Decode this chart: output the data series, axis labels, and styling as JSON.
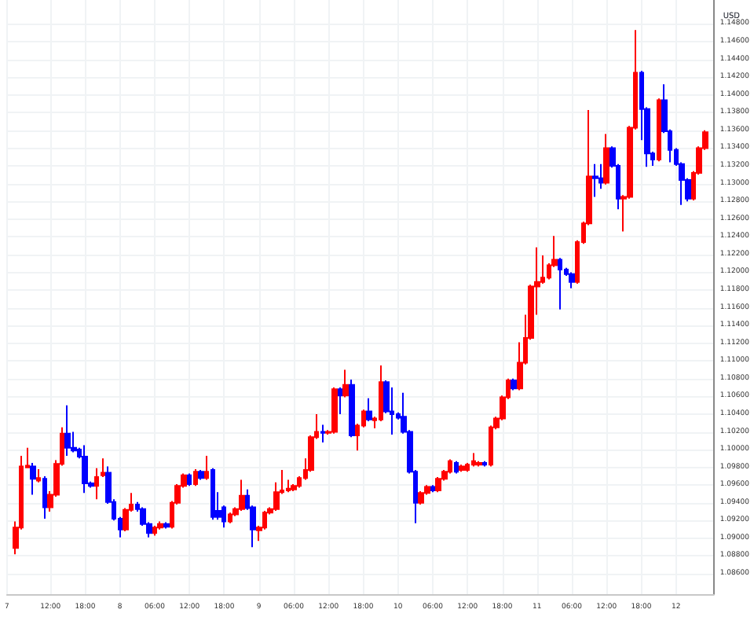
{
  "chart_data": {
    "type": "candlestick",
    "ylabel": "USD",
    "grid": true,
    "x": [
      "--01-07T06:00",
      "--01-07T07:00",
      "--01-07T08:00",
      "--01-07T09:00",
      "--01-07T10:00",
      "--01-07T11:00",
      "--01-07T12:00",
      "--01-07T13:00",
      "--01-07T14:00",
      "--01-07T15:00",
      "--01-07T16:00",
      "--01-07T17:00",
      "--01-07T18:00",
      "--01-07T19:00",
      "--01-07T20:00",
      "--01-07T21:00",
      "--01-07T22:00",
      "--01-07T23:00",
      "--01-08T00:00",
      "--01-08T01:00",
      "--01-08T02:00",
      "--01-08T03:00",
      "--01-08T04:00",
      "--01-08T05:00",
      "--01-08T06:00",
      "--01-08T07:00",
      "--01-08T08:00",
      "--01-08T09:00",
      "--01-08T10:00",
      "--01-08T11:00",
      "--01-08T12:00",
      "--01-08T13:00",
      "--01-08T14:00",
      "--01-08T15:00",
      "--01-08T16:00",
      "--01-08T17:00",
      "--01-08T18:00",
      "--01-08T19:00",
      "--01-08T20:00",
      "--01-08T21:00",
      "--01-08T22:00",
      "--01-08T23:00",
      "--01-09T00:00",
      "--01-09T01:00",
      "--01-09T02:00",
      "--01-09T03:00",
      "--01-09T04:00",
      "--01-09T05:00",
      "--01-09T06:00",
      "--01-09T07:00",
      "--01-09T08:00",
      "--01-09T09:00",
      "--01-09T10:00",
      "--01-09T11:00",
      "--01-09T12:00",
      "--01-09T13:00",
      "--01-09T14:00",
      "--01-09T15:00",
      "--01-09T16:00",
      "--01-09T17:00",
      "--01-09T18:00",
      "--01-09T19:00",
      "--01-09T20:00",
      "--01-09T21:00",
      "--01-09T22:00",
      "--01-09T23:00",
      "--01-10T00:00",
      "--01-10T01:00",
      "--01-10T02:00",
      "--01-10T03:00",
      "--01-10T04:00",
      "--01-10T05:00",
      "--01-10T06:00",
      "--01-10T07:00",
      "--01-10T08:00",
      "--01-10T09:00",
      "--01-10T10:00",
      "--01-10T11:00",
      "--01-10T12:00",
      "--01-10T13:00",
      "--01-10T14:00",
      "--01-10T15:00",
      "--01-10T16:00",
      "--01-10T17:00",
      "--01-10T18:00",
      "--01-10T19:00",
      "--01-10T20:00",
      "--01-10T21:00",
      "--01-10T22:00",
      "--01-10T23:00",
      "--01-11T00:00",
      "--01-11T01:00",
      "--01-11T02:00",
      "--01-11T03:00",
      "--01-11T04:00",
      "--01-11T05:00",
      "--01-11T06:00",
      "--01-11T07:00",
      "--01-11T08:00",
      "--01-11T09:00",
      "--01-11T10:00",
      "--01-11T11:00",
      "--01-11T12:00",
      "--01-11T13:00",
      "--01-11T14:00",
      "--01-11T15:00",
      "--01-11T16:00",
      "--01-11T17:00",
      "--01-11T18:00",
      "--01-11T19:00",
      "--01-11T20:00",
      "--01-11T21:00",
      "--01-11T22:00",
      "--01-11T23:00",
      "--01-12T00:00",
      "--01-12T01:00",
      "--01-12T02:00",
      "--01-12T03:00",
      "--01-12T04:00",
      "--01-12T05:00"
    ],
    "xlim": [
      "--01-07T04:30",
      "--01-12T06:30"
    ],
    "xticks": [
      {
        "value": "--01-07T04:30",
        "label": "7"
      },
      {
        "value": "--01-07T12:00",
        "label": "12:00"
      },
      {
        "value": "--01-07T18:00",
        "label": "18:00"
      },
      {
        "value": "--01-08",
        "label": "8"
      },
      {
        "value": "--01-08T06:00",
        "label": "06:00"
      },
      {
        "value": "--01-08T12:00",
        "label": "12:00"
      },
      {
        "value": "--01-08T18:00",
        "label": "18:00"
      },
      {
        "value": "--01-09",
        "label": "9"
      },
      {
        "value": "--01-09T06:00",
        "label": "06:00"
      },
      {
        "value": "--01-09T12:00",
        "label": "12:00"
      },
      {
        "value": "--01-09T18:00",
        "label": "18:00"
      },
      {
        "value": "--01-10",
        "label": "10"
      },
      {
        "value": "--01-10T06:00",
        "label": "06:00"
      },
      {
        "value": "--01-10T12:00",
        "label": "12:00"
      },
      {
        "value": "--01-10T18:00",
        "label": "18:00"
      },
      {
        "value": "--01-11",
        "label": "11"
      },
      {
        "value": "--01-11T06:00",
        "label": "06:00"
      },
      {
        "value": "--01-11T12:00",
        "label": "12:00"
      },
      {
        "value": "--01-11T18:00",
        "label": "18:00"
      },
      {
        "value": "--01-12",
        "label": "12"
      }
    ],
    "ylim": [
      1.0837,
      1.1507
    ],
    "yticks": [
      {
        "value": 1.086,
        "label": "1.08600"
      },
      {
        "value": 1.088,
        "label": "1.08800"
      },
      {
        "value": 1.09,
        "label": "1.09000"
      },
      {
        "value": 1.092,
        "label": "1.09200"
      },
      {
        "value": 1.094,
        "label": "1.09400"
      },
      {
        "value": 1.096,
        "label": "1.09600"
      },
      {
        "value": 1.098,
        "label": "1.09800"
      },
      {
        "value": 1.1,
        "label": "1.10000"
      },
      {
        "value": 1.102,
        "label": "1.10200"
      },
      {
        "value": 1.104,
        "label": "1.10400"
      },
      {
        "value": 1.106,
        "label": "1.10600"
      },
      {
        "value": 1.108,
        "label": "1.10800"
      },
      {
        "value": 1.11,
        "label": "1.11000"
      },
      {
        "value": 1.112,
        "label": "1.11200"
      },
      {
        "value": 1.114,
        "label": "1.11400"
      },
      {
        "value": 1.116,
        "label": "1.11600"
      },
      {
        "value": 1.118,
        "label": "1.11800"
      },
      {
        "value": 1.12,
        "label": "1.12000"
      },
      {
        "value": 1.122,
        "label": "1.12200"
      },
      {
        "value": 1.124,
        "label": "1.12400"
      },
      {
        "value": 1.126,
        "label": "1.12600"
      },
      {
        "value": 1.128,
        "label": "1.12800"
      },
      {
        "value": 1.13,
        "label": "1.13000"
      },
      {
        "value": 1.132,
        "label": "1.13200"
      },
      {
        "value": 1.134,
        "label": "1.13400"
      },
      {
        "value": 1.136,
        "label": "1.13600"
      },
      {
        "value": 1.138,
        "label": "1.13800"
      },
      {
        "value": 1.14,
        "label": "1.14000"
      },
      {
        "value": 1.142,
        "label": "1.14200"
      },
      {
        "value": 1.144,
        "label": "1.14400"
      },
      {
        "value": 1.146,
        "label": "1.14600"
      },
      {
        "value": 1.148,
        "label": "1.14800"
      }
    ],
    "ohlc": [
      [
        1.0889,
        1.0919,
        1.0882,
        1.0912
      ],
      [
        1.0912,
        1.0993,
        1.091,
        1.0981
      ],
      [
        1.098,
        1.1002,
        1.0979,
        1.0982
      ],
      [
        1.0981,
        1.0985,
        1.0949,
        1.0967
      ],
      [
        1.0965,
        1.0978,
        1.0963,
        1.0968
      ],
      [
        1.0967,
        1.097,
        1.0922,
        1.0935
      ],
      [
        1.0935,
        1.0953,
        1.093,
        1.0949
      ],
      [
        1.0949,
        1.0988,
        1.0947,
        1.0984
      ],
      [
        1.0984,
        1.1025,
        1.0982,
        1.1018
      ],
      [
        1.1018,
        1.105,
        1.0993,
        1.1002
      ],
      [
        1.1002,
        1.102,
        1.0997,
        1.0999
      ],
      [
        1.1,
        1.1002,
        1.099,
        1.0992
      ],
      [
        1.0992,
        1.1005,
        1.0951,
        1.0962
      ],
      [
        1.0962,
        1.0964,
        1.0957,
        1.0959
      ],
      [
        1.0959,
        1.0979,
        1.0944,
        1.0969
      ],
      [
        1.0971,
        1.099,
        1.0969,
        1.0974
      ],
      [
        1.0974,
        1.0981,
        1.0939,
        1.0941
      ],
      [
        1.0941,
        1.0944,
        1.092,
        1.0922
      ],
      [
        1.0922,
        1.0924,
        1.0901,
        1.091
      ],
      [
        1.091,
        1.0934,
        1.0908,
        1.0932
      ],
      [
        1.0932,
        1.0951,
        1.093,
        1.0938
      ],
      [
        1.0938,
        1.0941,
        1.093,
        1.0933
      ],
      [
        1.0933,
        1.0935,
        1.0914,
        1.0916
      ],
      [
        1.0916,
        1.0918,
        1.0901,
        1.0906
      ],
      [
        1.0906,
        1.0914,
        1.0903,
        1.0912
      ],
      [
        1.0912,
        1.0919,
        1.091,
        1.0916
      ],
      [
        1.0916,
        1.0918,
        1.0911,
        1.0913
      ],
      [
        1.0913,
        1.0942,
        1.0911,
        1.094
      ],
      [
        1.094,
        1.0961,
        1.0938,
        1.0959
      ],
      [
        1.0959,
        1.0973,
        1.0957,
        1.0971
      ],
      [
        1.0971,
        1.0973,
        1.0959,
        1.0961
      ],
      [
        1.0961,
        1.0978,
        1.0959,
        1.0975
      ],
      [
        1.0975,
        1.0977,
        1.0966,
        1.0968
      ],
      [
        1.0968,
        1.0993,
        1.0966,
        1.0975
      ],
      [
        1.0977,
        1.0979,
        1.0921,
        1.0924
      ],
      [
        1.0931,
        1.0952,
        1.0921,
        1.0924
      ],
      [
        1.0935,
        1.0937,
        1.0912,
        1.0919
      ],
      [
        1.0919,
        1.0929,
        1.0917,
        1.0927
      ],
      [
        1.0927,
        1.0935,
        1.0925,
        1.0933
      ],
      [
        1.0933,
        1.0966,
        1.0931,
        1.0948
      ],
      [
        1.0948,
        1.0955,
        1.0932,
        1.0934
      ],
      [
        1.0935,
        1.0937,
        1.089,
        1.091
      ],
      [
        1.0909,
        1.0914,
        1.0897,
        1.0912
      ],
      [
        1.0912,
        1.0931,
        1.091,
        1.0929
      ],
      [
        1.0929,
        1.0935,
        1.0927,
        1.0933
      ],
      [
        1.0933,
        1.0963,
        1.0931,
        1.0952
      ],
      [
        1.0952,
        1.0977,
        1.095,
        1.0954
      ],
      [
        1.0954,
        1.0966,
        1.0952,
        1.0956
      ],
      [
        1.0955,
        1.0961,
        1.0953,
        1.0959
      ],
      [
        1.0959,
        1.097,
        1.0957,
        1.0968
      ],
      [
        1.0968,
        1.099,
        1.0966,
        1.0977
      ],
      [
        1.0977,
        1.1016,
        1.0975,
        1.1014
      ],
      [
        1.1014,
        1.104,
        1.1012,
        1.102
      ],
      [
        1.102,
        1.1028,
        1.1008,
        1.1019
      ],
      [
        1.1019,
        1.1022,
        1.1017,
        1.102
      ],
      [
        1.102,
        1.107,
        1.1018,
        1.1068
      ],
      [
        1.1068,
        1.107,
        1.104,
        1.1061
      ],
      [
        1.1061,
        1.109,
        1.1059,
        1.1073
      ],
      [
        1.1073,
        1.1079,
        1.1014,
        1.1016
      ],
      [
        1.1016,
        1.1029,
        1.0999,
        1.1027
      ],
      [
        1.1027,
        1.1045,
        1.1025,
        1.1043
      ],
      [
        1.1043,
        1.1058,
        1.1032,
        1.1034
      ],
      [
        1.1033,
        1.1037,
        1.1024,
        1.1035
      ],
      [
        1.1034,
        1.1095,
        1.1032,
        1.1076
      ],
      [
        1.1076,
        1.1078,
        1.1041,
        1.1043
      ],
      [
        1.1043,
        1.107,
        1.1017,
        1.104
      ],
      [
        1.104,
        1.1042,
        1.1034,
        1.1036
      ],
      [
        1.1037,
        1.1064,
        1.1018,
        1.102
      ],
      [
        1.102,
        1.1022,
        1.0973,
        1.0975
      ],
      [
        1.0975,
        1.0977,
        1.0917,
        1.094
      ],
      [
        1.094,
        1.0953,
        1.0938,
        1.0951
      ],
      [
        1.0951,
        1.096,
        1.0949,
        1.0958
      ],
      [
        1.0958,
        1.096,
        1.0952,
        1.0954
      ],
      [
        1.0954,
        1.0969,
        1.0952,
        1.0967
      ],
      [
        1.0967,
        1.0977,
        1.0965,
        1.0975
      ],
      [
        1.0975,
        1.0989,
        1.0973,
        1.0987
      ],
      [
        1.0985,
        1.0987,
        1.0973,
        1.0975
      ],
      [
        1.0977,
        1.0983,
        1.0975,
        1.0981
      ],
      [
        1.0977,
        1.0985,
        1.0975,
        1.0983
      ],
      [
        1.0983,
        1.0996,
        1.0981,
        1.0987
      ],
      [
        1.0983,
        1.0987,
        1.0981,
        1.0985
      ],
      [
        1.0985,
        1.0987,
        1.0981,
        1.0983
      ],
      [
        1.0983,
        1.1027,
        1.0981,
        1.1025
      ],
      [
        1.1025,
        1.1037,
        1.1023,
        1.1035
      ],
      [
        1.1035,
        1.1061,
        1.1033,
        1.1059
      ],
      [
        1.1059,
        1.108,
        1.1057,
        1.1078
      ],
      [
        1.1078,
        1.108,
        1.1067,
        1.1069
      ],
      [
        1.1069,
        1.1121,
        1.1067,
        1.1098
      ],
      [
        1.1098,
        1.1152,
        1.1096,
        1.1126
      ],
      [
        1.1126,
        1.1186,
        1.1124,
        1.1184
      ],
      [
        1.1184,
        1.1228,
        1.1152,
        1.1189
      ],
      [
        1.1189,
        1.1219,
        1.1187,
        1.1194
      ],
      [
        1.1194,
        1.121,
        1.1192,
        1.1208
      ],
      [
        1.1208,
        1.1241,
        1.1206,
        1.1214
      ],
      [
        1.1214,
        1.1216,
        1.1158,
        1.1203
      ],
      [
        1.1203,
        1.1205,
        1.1196,
        1.1198
      ],
      [
        1.1198,
        1.12,
        1.1182,
        1.1189
      ],
      [
        1.1189,
        1.1236,
        1.1187,
        1.1234
      ],
      [
        1.1234,
        1.1257,
        1.1232,
        1.1255
      ],
      [
        1.1255,
        1.1383,
        1.1253,
        1.1308
      ],
      [
        1.1308,
        1.1322,
        1.1285,
        1.1306
      ],
      [
        1.1306,
        1.1322,
        1.1294,
        1.1301
      ],
      [
        1.1301,
        1.1356,
        1.1299,
        1.134
      ],
      [
        1.134,
        1.1342,
        1.1318,
        1.132
      ],
      [
        1.132,
        1.1322,
        1.1271,
        1.1283
      ],
      [
        1.1283,
        1.1287,
        1.1246,
        1.1285
      ],
      [
        1.1285,
        1.1365,
        1.1283,
        1.1363
      ],
      [
        1.1363,
        1.1473,
        1.1361,
        1.1425
      ],
      [
        1.1425,
        1.1427,
        1.1349,
        1.1384
      ],
      [
        1.1384,
        1.1386,
        1.1319,
        1.1334
      ],
      [
        1.1334,
        1.1336,
        1.132,
        1.1327
      ],
      [
        1.1327,
        1.1396,
        1.1325,
        1.1394
      ],
      [
        1.1394,
        1.1412,
        1.1357,
        1.1359
      ],
      [
        1.1359,
        1.1361,
        1.1324,
        1.1338
      ],
      [
        1.1338,
        1.134,
        1.132,
        1.1322
      ],
      [
        1.1322,
        1.1324,
        1.1276,
        1.1304
      ],
      [
        1.1304,
        1.1306,
        1.128,
        1.1283
      ],
      [
        1.1283,
        1.1314,
        1.1281,
        1.1312
      ],
      [
        1.1312,
        1.1342,
        1.131,
        1.134
      ],
      [
        1.134,
        1.136,
        1.1338,
        1.1358
      ]
    ],
    "colors": [
      "#ff0000",
      "#ff0000",
      "#ff0000",
      "#0000ff",
      "#ff0000",
      "#0000ff",
      "#ff0000",
      "#ff0000",
      "#ff0000",
      "#0000ff",
      "#0000ff",
      "#0000ff",
      "#0000ff",
      "#0000ff",
      "#ff0000",
      "#ff0000",
      "#0000ff",
      "#0000ff",
      "#0000ff",
      "#ff0000",
      "#ff0000",
      "#0000ff",
      "#0000ff",
      "#0000ff",
      "#ff0000",
      "#ff0000",
      "#0000ff",
      "#ff0000",
      "#ff0000",
      "#ff0000",
      "#0000ff",
      "#ff0000",
      "#0000ff",
      "#ff0000",
      "#0000ff",
      "#0000ff",
      "#0000ff",
      "#ff0000",
      "#ff0000",
      "#ff0000",
      "#0000ff",
      "#0000ff",
      "#ff0000",
      "#ff0000",
      "#ff0000",
      "#ff0000",
      "#ff0000",
      "#ff0000",
      "#ff0000",
      "#ff0000",
      "#ff0000",
      "#ff0000",
      "#ff0000",
      "#0000ff",
      "#ff0000",
      "#ff0000",
      "#0000ff",
      "#ff0000",
      "#0000ff",
      "#ff0000",
      "#ff0000",
      "#0000ff",
      "#ff0000",
      "#ff0000",
      "#0000ff",
      "#0000ff",
      "#0000ff",
      "#0000ff",
      "#0000ff",
      "#0000ff",
      "#ff0000",
      "#ff0000",
      "#0000ff",
      "#ff0000",
      "#ff0000",
      "#ff0000",
      "#0000ff",
      "#ff0000",
      "#ff0000",
      "#ff0000",
      "#ff0000",
      "#0000ff",
      "#ff0000",
      "#ff0000",
      "#ff0000",
      "#ff0000",
      "#0000ff",
      "#ff0000",
      "#ff0000",
      "#ff0000",
      "#ff0000",
      "#ff0000",
      "#ff0000",
      "#ff0000",
      "#0000ff",
      "#0000ff",
      "#0000ff",
      "#ff0000",
      "#ff0000",
      "#ff0000",
      "#0000ff",
      "#0000ff",
      "#ff0000",
      "#0000ff",
      "#0000ff",
      "#ff0000",
      "#ff0000",
      "#ff0000",
      "#0000ff",
      "#0000ff",
      "#0000ff",
      "#ff0000",
      "#0000ff",
      "#0000ff",
      "#0000ff",
      "#0000ff",
      "#0000ff",
      "#ff0000",
      "#ff0000",
      "#ff0000"
    ]
  }
}
